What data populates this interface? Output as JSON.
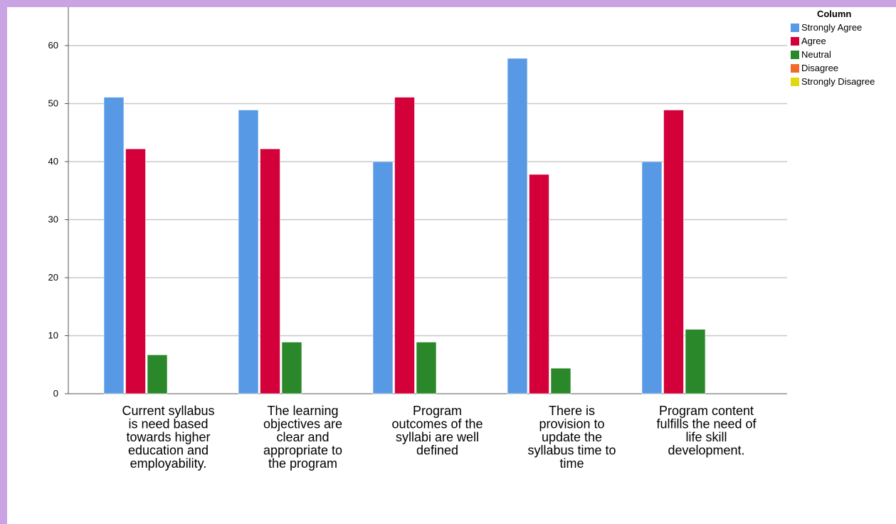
{
  "chart_data": {
    "type": "bar",
    "categories": [
      [
        "Current syllabus",
        "is need based",
        "towards higher",
        "education and",
        "employability."
      ],
      [
        "The learning",
        "objectives are",
        "clear and",
        "appropriate to",
        "the program"
      ],
      [
        "Program",
        "outcomes of the",
        "syllabi are well",
        "defined"
      ],
      [
        "There is",
        "provision to",
        "update the",
        "syllabus time to",
        "time"
      ],
      [
        "Program content",
        "fulfills the need of",
        "life skill",
        "development."
      ]
    ],
    "series": [
      {
        "name": "Strongly Agree",
        "color": "#5899e5",
        "values": [
          51.1,
          48.9,
          40,
          57.8,
          40
        ]
      },
      {
        "name": "Agree",
        "color": "#d3003a",
        "values": [
          42.2,
          42.2,
          51.1,
          37.8,
          48.9
        ]
      },
      {
        "name": "Neutral",
        "color": "#2a882b",
        "values": [
          6.7,
          8.9,
          8.9,
          4.4,
          11.1
        ]
      },
      {
        "name": "Disagree",
        "color": "#f26a2b",
        "values": [
          0,
          0,
          0,
          0,
          0
        ]
      },
      {
        "name": "Strongly Disagree",
        "color": "#e3d80f",
        "values": [
          0,
          0,
          0,
          0,
          0
        ]
      }
    ],
    "legend_title": "Column",
    "legend_position": "top-right",
    "yticks": [
      0,
      10,
      20,
      30,
      40,
      50,
      60
    ],
    "ylim": [
      0,
      67
    ],
    "grid": true,
    "title": "",
    "xlabel": "",
    "ylabel": ""
  }
}
